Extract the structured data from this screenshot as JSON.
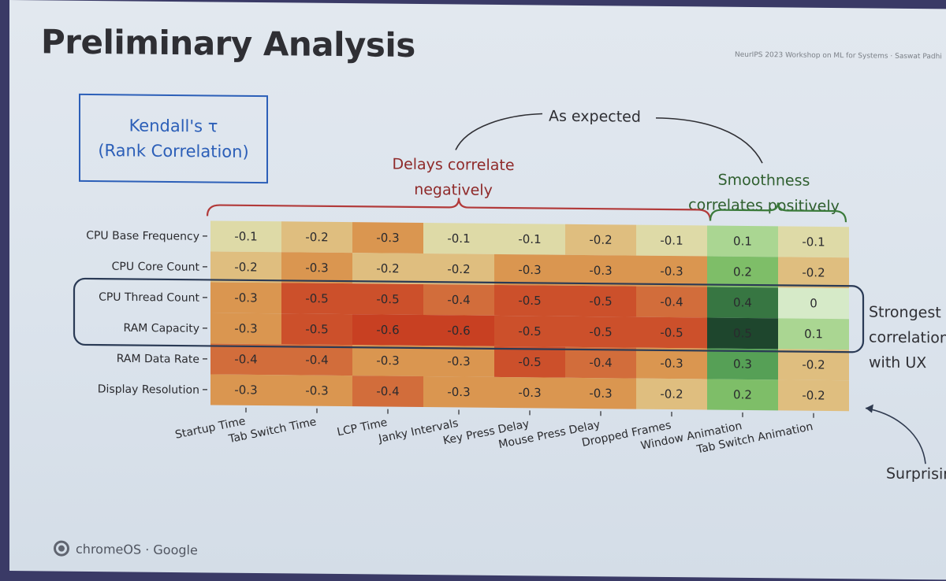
{
  "slide": {
    "title": "Preliminary Analysis",
    "conference_note": "NeurIPS 2023 Workshop on ML for Systems  ·  Saswat Padhi",
    "kendall_line1": "Kendall's τ",
    "kendall_line2": "(Rank Correlation)",
    "annotations": {
      "as_expected": "As expected",
      "delays_line1": "Delays correlate",
      "delays_line2": "negatively",
      "smooth_line1": "Smoothness",
      "smooth_line2": "correlates positively",
      "strongest_line1": "Strongest",
      "strongest_line2": "correlation",
      "strongest_line3": "with UX",
      "surprising": "Surprising"
    },
    "footer": "chromeOS · Google"
  },
  "colors": {
    "highlight_frame": "#2a3a55",
    "delays_bracket": "#b23a3a",
    "smoothness_bracket": "#3a7a3a",
    "box_blue": "#2c5fb8"
  },
  "chart_data": {
    "type": "heatmap",
    "metric": "Kendall's τ (Rank Correlation)",
    "rows": [
      "CPU Base Frequency",
      "CPU Core Count",
      "CPU Thread Count",
      "RAM Capacity",
      "RAM Data Rate",
      "Display Resolution"
    ],
    "columns": [
      "Startup Time",
      "Tab Switch Time",
      "LCP Time",
      "Janky Intervals",
      "Key Press Delay",
      "Mouse Press Delay",
      "Dropped Frames",
      "Window Animation",
      "Tab Switch Animation"
    ],
    "labels": [
      [
        "-0.1",
        "-0.2",
        "-0.3",
        "-0.1",
        "-0.1",
        "-0.2",
        "-0.1",
        "0.1",
        "-0.1"
      ],
      [
        "-0.2",
        "-0.3",
        "-0.2",
        "-0.2",
        "-0.3",
        "-0.3",
        "-0.3",
        "0.2",
        "-0.2"
      ],
      [
        "-0.3",
        "-0.5",
        "-0.5",
        "-0.4",
        "-0.5",
        "-0.5",
        "-0.4",
        "0.4",
        "0"
      ],
      [
        "-0.3",
        "-0.5",
        "-0.6",
        "-0.6",
        "-0.5",
        "-0.5",
        "-0.5",
        "0.5",
        "0.1"
      ],
      [
        "-0.4",
        "-0.4",
        "-0.3",
        "-0.3",
        "-0.5",
        "-0.4",
        "-0.3",
        "0.3",
        "-0.2"
      ],
      [
        "-0.3",
        "-0.3",
        "-0.4",
        "-0.3",
        "-0.3",
        "-0.3",
        "-0.2",
        "0.2",
        "-0.2"
      ]
    ],
    "values": [
      [
        -0.1,
        -0.2,
        -0.3,
        -0.1,
        -0.1,
        -0.2,
        -0.1,
        0.1,
        -0.1
      ],
      [
        -0.2,
        -0.3,
        -0.2,
        -0.2,
        -0.3,
        -0.3,
        -0.3,
        0.2,
        -0.2
      ],
      [
        -0.3,
        -0.5,
        -0.5,
        -0.4,
        -0.5,
        -0.5,
        -0.4,
        0.4,
        0
      ],
      [
        -0.3,
        -0.5,
        -0.6,
        -0.6,
        -0.5,
        -0.5,
        -0.5,
        0.5,
        0.1
      ],
      [
        -0.4,
        -0.4,
        -0.3,
        -0.3,
        -0.5,
        -0.4,
        -0.3,
        0.3,
        -0.2
      ],
      [
        -0.3,
        -0.3,
        -0.4,
        -0.3,
        -0.3,
        -0.3,
        -0.2,
        0.2,
        -0.2
      ]
    ],
    "colorscale": "diverging: red (negative) → light green (0) → dark green (positive)",
    "highlighted_rows": [
      "CPU Thread Count",
      "RAM Capacity"
    ],
    "grouped_columns": {
      "delays": [
        "Startup Time",
        "Tab Switch Time",
        "LCP Time",
        "Janky Intervals",
        "Key Press Delay",
        "Mouse Press Delay",
        "Dropped Frames"
      ],
      "smoothness": [
        "Window Animation",
        "Tab Switch Animation"
      ]
    }
  }
}
